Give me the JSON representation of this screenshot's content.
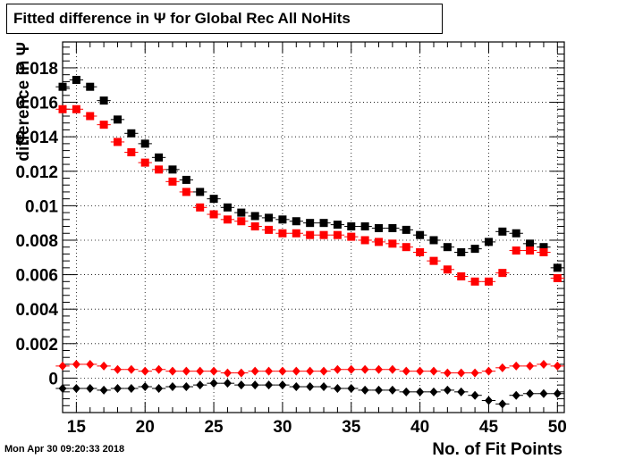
{
  "title": "Fitted difference in  Ψ  for Global Rec All NoHits",
  "timestamp": "Mon Apr 30 09:20:33 2018",
  "chart_data": {
    "type": "scatter",
    "title": "Fitted difference in  Ψ  for Global Rec All NoHits",
    "xlabel": "No. of Fit Points",
    "ylabel": "difference in Ψ",
    "xlim": [
      14,
      50.5
    ],
    "ylim": [
      -0.002,
      0.0195
    ],
    "grid": true,
    "x_ticks": [
      "15",
      "20",
      "25",
      "30",
      "35",
      "40",
      "45",
      "50"
    ],
    "y_ticks": [
      "0",
      "0.002",
      "0.004",
      "0.006",
      "0.008",
      "0.01",
      "0.012",
      "0.014",
      "0.016",
      "0.018"
    ],
    "x": [
      14,
      15,
      16,
      17,
      18,
      19,
      20,
      21,
      22,
      23,
      24,
      25,
      26,
      27,
      28,
      29,
      30,
      31,
      32,
      33,
      34,
      35,
      36,
      37,
      38,
      39,
      40,
      41,
      42,
      43,
      44,
      45,
      46,
      47,
      48,
      49,
      50
    ],
    "series": [
      {
        "color": "#000000",
        "marker": "square",
        "values": [
          0.0169,
          0.0173,
          0.0169,
          0.0161,
          0.015,
          0.0142,
          0.0136,
          0.0128,
          0.0121,
          0.0115,
          0.0108,
          0.0104,
          0.0099,
          0.0096,
          0.0094,
          0.0093,
          0.0092,
          0.0091,
          0.009,
          0.009,
          0.0089,
          0.0088,
          0.0088,
          0.0087,
          0.0087,
          0.0086,
          0.0083,
          0.008,
          0.0076,
          0.0073,
          0.0075,
          0.0079,
          0.0085,
          0.0084,
          0.0078,
          0.0076,
          0.0064
        ]
      },
      {
        "color": "#ff0000",
        "marker": "square",
        "values": [
          0.0156,
          0.0156,
          0.0152,
          0.0147,
          0.0137,
          0.0131,
          0.0125,
          0.0121,
          0.0114,
          0.0108,
          0.0099,
          0.0095,
          0.0092,
          0.0091,
          0.0088,
          0.0086,
          0.0084,
          0.0084,
          0.0083,
          0.0083,
          0.0083,
          0.0082,
          0.008,
          0.0079,
          0.0078,
          0.0076,
          0.0073,
          0.0068,
          0.0063,
          0.0059,
          0.0056,
          0.0056,
          0.0061,
          0.0074,
          0.0074,
          0.0073,
          0.0058
        ]
      },
      {
        "color": "#ff0000",
        "marker": "diamond",
        "values": [
          0.0007,
          0.0008,
          0.0008,
          0.0007,
          0.0005,
          0.0005,
          0.0004,
          0.0005,
          0.0004,
          0.0004,
          0.0004,
          0.0004,
          0.0003,
          0.0003,
          0.0004,
          0.0004,
          0.0004,
          0.0004,
          0.0004,
          0.0004,
          0.0005,
          0.0005,
          0.0005,
          0.0005,
          0.0005,
          0.0004,
          0.0004,
          0.0004,
          0.0003,
          0.0003,
          0.0003,
          0.0004,
          0.0006,
          0.0007,
          0.0007,
          0.0008,
          0.0007
        ]
      },
      {
        "color": "#000000",
        "marker": "diamond",
        "values": [
          -0.0006,
          -0.0006,
          -0.0006,
          -0.0007,
          -0.0006,
          -0.0006,
          -0.0005,
          -0.0006,
          -0.0005,
          -0.0005,
          -0.0004,
          -0.0003,
          -0.0003,
          -0.0004,
          -0.0004,
          -0.0004,
          -0.0004,
          -0.0005,
          -0.0005,
          -0.0005,
          -0.0006,
          -0.0006,
          -0.0007,
          -0.0007,
          -0.0007,
          -0.0008,
          -0.0008,
          -0.0008,
          -0.0007,
          -0.0008,
          -0.001,
          -0.0013,
          -0.0015,
          -0.001,
          -0.0009,
          -0.0009,
          -0.0009
        ]
      }
    ]
  }
}
